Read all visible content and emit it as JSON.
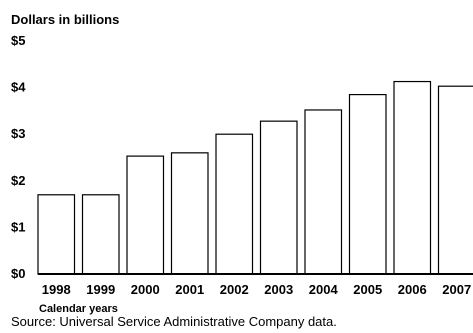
{
  "chart_data": {
    "type": "bar",
    "ylabel": "Dollars in billions",
    "xlabel": "Calendar years",
    "categories": [
      "1998",
      "1999",
      "2000",
      "2001",
      "2002",
      "2003",
      "2004",
      "2005",
      "2006",
      "2007"
    ],
    "values": [
      1.7,
      1.7,
      2.53,
      2.6,
      3.0,
      3.28,
      3.52,
      3.85,
      4.13,
      4.03
    ],
    "ylim": [
      0,
      5
    ],
    "yticks": [
      0,
      1,
      2,
      3,
      4,
      5
    ],
    "ytick_labels": [
      "$0",
      "$1",
      "$2",
      "$3",
      "$4",
      "$5"
    ],
    "grid": false,
    "colors": {
      "bar_fill": "#ffffff",
      "bar_stroke": "#000000"
    }
  },
  "source": "Source: Universal Service Administrative Company data."
}
